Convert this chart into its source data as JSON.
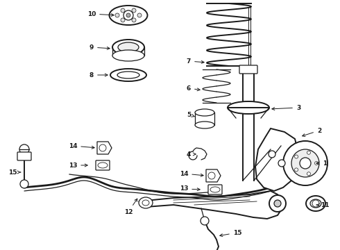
{
  "background_color": "#ffffff",
  "fig_width": 4.9,
  "fig_height": 3.6,
  "dpi": 100,
  "line_color": "#1a1a1a",
  "label_fontsize": 6.5,
  "label_fontsize_2": 7.0
}
